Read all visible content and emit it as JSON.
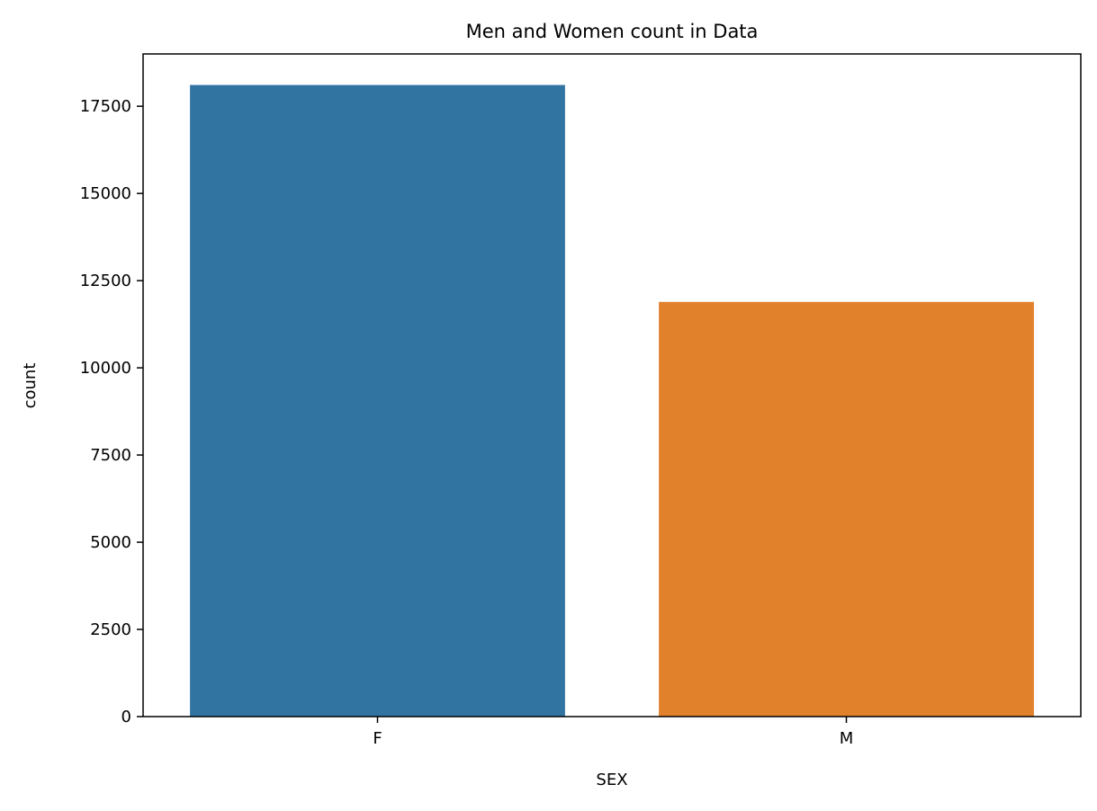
{
  "chart_data": {
    "type": "bar",
    "title": "Men and Women count in Data",
    "xlabel": "SEX",
    "ylabel": "count",
    "categories": [
      "F",
      "M"
    ],
    "values": [
      18110,
      11890
    ],
    "colors": [
      "#3274a1",
      "#e1812c"
    ],
    "ylim": [
      0,
      19000
    ],
    "yticks": [
      0,
      2500,
      5000,
      7500,
      10000,
      12500,
      15000,
      17500
    ],
    "grid": false,
    "legend": "none"
  }
}
